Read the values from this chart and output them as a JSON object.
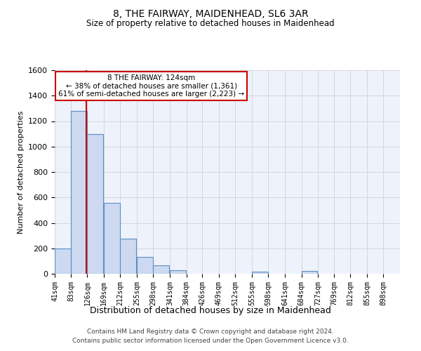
{
  "title": "8, THE FAIRWAY, MAIDENHEAD, SL6 3AR",
  "subtitle": "Size of property relative to detached houses in Maidenhead",
  "xlabel": "Distribution of detached houses by size in Maidenhead",
  "ylabel": "Number of detached properties",
  "footnote1": "Contains HM Land Registry data © Crown copyright and database right 2024.",
  "footnote2": "Contains public sector information licensed under the Open Government Licence v3.0.",
  "bin_labels": [
    "41sqm",
    "83sqm",
    "126sqm",
    "169sqm",
    "212sqm",
    "255sqm",
    "298sqm",
    "341sqm",
    "384sqm",
    "426sqm",
    "469sqm",
    "512sqm",
    "555sqm",
    "598sqm",
    "641sqm",
    "684sqm",
    "727sqm",
    "769sqm",
    "812sqm",
    "855sqm",
    "898sqm"
  ],
  "bar_values": [
    200,
    1280,
    1100,
    555,
    275,
    130,
    65,
    30,
    0,
    0,
    0,
    0,
    15,
    0,
    0,
    20,
    0,
    0,
    0,
    0,
    0
  ],
  "bin_edges": [
    41,
    83,
    126,
    169,
    212,
    255,
    298,
    341,
    384,
    426,
    469,
    512,
    555,
    598,
    641,
    684,
    727,
    769,
    812,
    855,
    898,
    941
  ],
  "bar_color": "#ccd9f0",
  "bar_edge_color": "#5b8ec4",
  "grid_color": "#cccccc",
  "background_color": "#eef2fb",
  "redline_x": 124,
  "annotation_line1": "8 THE FAIRWAY: 124sqm",
  "annotation_line2": "← 38% of detached houses are smaller (1,361)",
  "annotation_line3": "61% of semi-detached houses are larger (2,223) →",
  "annotation_box_color": "#ffffff",
  "annotation_box_edge_color": "#cc0000",
  "ylim": [
    0,
    1600
  ],
  "yticks": [
    0,
    200,
    400,
    600,
    800,
    1000,
    1200,
    1400,
    1600
  ]
}
